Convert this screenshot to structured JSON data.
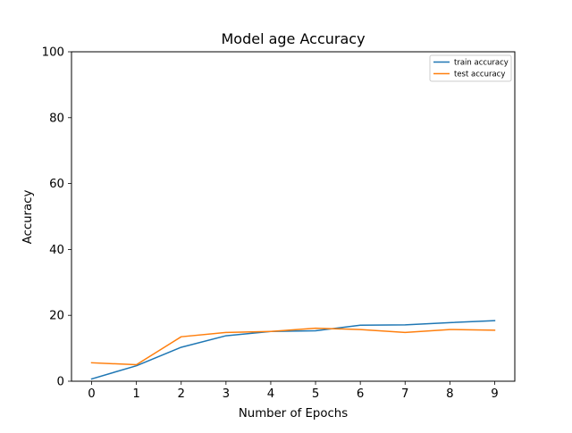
{
  "chart_data": {
    "type": "line",
    "title": "Model age Accuracy",
    "xlabel": "Number of Epochs",
    "ylabel": "Accuracy",
    "x": [
      0,
      1,
      2,
      3,
      4,
      5,
      6,
      7,
      8,
      9
    ],
    "xticks": [
      0,
      1,
      2,
      3,
      4,
      5,
      6,
      7,
      8,
      9
    ],
    "xlim": [
      -0.45,
      9.45
    ],
    "ylim": [
      0,
      100
    ],
    "yticks": [
      0,
      20,
      40,
      60,
      80,
      100
    ],
    "grid": false,
    "legend_position": "top-right",
    "series": [
      {
        "name": "train accuracy",
        "color": "#1f77b4",
        "values": [
          0.7,
          4.7,
          10.3,
          13.8,
          15.1,
          15.3,
          17.0,
          17.1,
          17.8,
          18.4
        ]
      },
      {
        "name": "test accuracy",
        "color": "#ff7f0e",
        "values": [
          5.6,
          5.0,
          13.5,
          14.8,
          15.1,
          16.1,
          15.7,
          14.8,
          15.7,
          15.5
        ]
      }
    ]
  }
}
